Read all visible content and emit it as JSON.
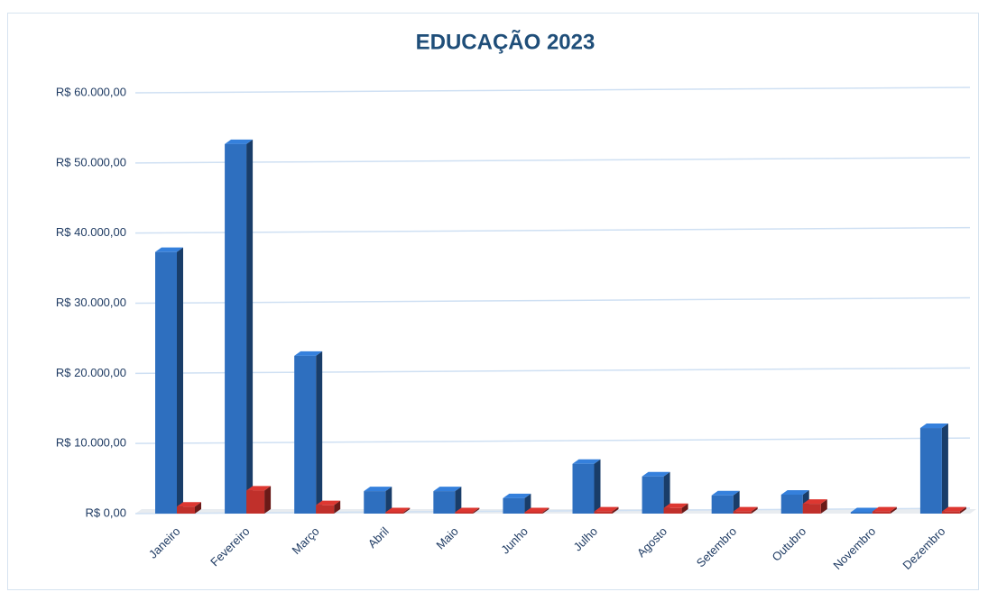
{
  "chart_data": {
    "type": "bar3d",
    "title": "EDUCAÇÃO 2023",
    "categories": [
      "Janeiro",
      "Fevereiro",
      "Março",
      "Abril",
      "Maio",
      "Junho",
      "Julho",
      "Agosto",
      "Setembro",
      "Outubro",
      "Novembro",
      "Dezembro"
    ],
    "series": [
      {
        "color": "#2e6fbf",
        "values": [
          37300,
          52700,
          22500,
          3200,
          3200,
          2200,
          7100,
          5300,
          2600,
          2700,
          200,
          12200
        ]
      },
      {
        "color": "#c0302b",
        "values": [
          1000,
          3300,
          1200,
          200,
          200,
          200,
          300,
          800,
          300,
          1400,
          300,
          300
        ]
      }
    ],
    "ylim": [
      0,
      60000
    ],
    "yticks": [
      {
        "value": 0,
        "label": "R$ 0,00"
      },
      {
        "value": 10000,
        "label": "R$ 10.000,00"
      },
      {
        "value": 20000,
        "label": "R$ 20.000,00"
      },
      {
        "value": 30000,
        "label": "R$ 30.000,00"
      },
      {
        "value": 40000,
        "label": "R$ 40.000,00"
      },
      {
        "value": 50000,
        "label": "R$ 50.000,00"
      },
      {
        "value": 60000,
        "label": "R$ 60.000,00"
      }
    ],
    "grid": true
  }
}
